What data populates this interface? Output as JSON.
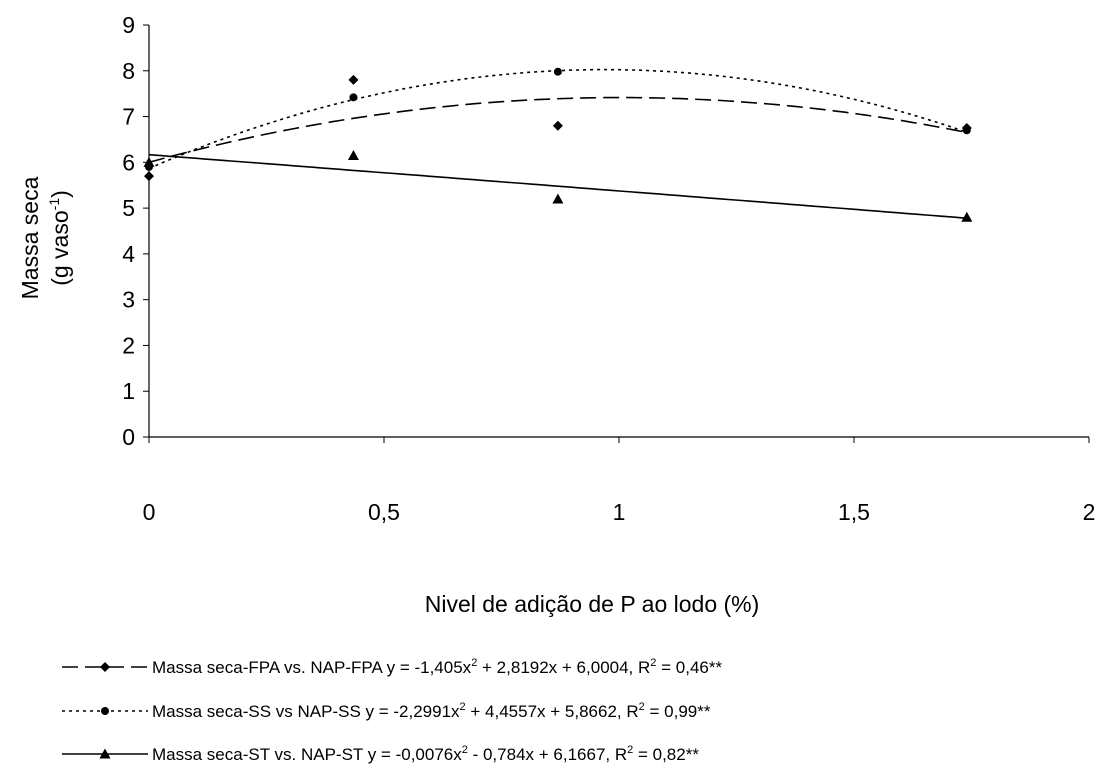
{
  "chart_data": {
    "type": "scatter",
    "title": "",
    "xlabel": "Nivel de adição de P ao lodo (%)",
    "ylabel": "Massa seca",
    "ylabel_units": {
      "prefix": "(g vaso",
      "exponent": "-1",
      "suffix": ")"
    },
    "xlim": [
      0,
      2
    ],
    "ylim": [
      0,
      9
    ],
    "xticks": [
      0,
      0.5,
      1,
      1.5,
      2
    ],
    "xtick_labels": [
      "0",
      "0,5",
      "1",
      "1,5",
      "2"
    ],
    "yticks": [
      0,
      1,
      2,
      3,
      4,
      5,
      6,
      7,
      8,
      9
    ],
    "ytick_labels": [
      "0",
      "1",
      "2",
      "3",
      "4",
      "5",
      "6",
      "7",
      "8",
      "9"
    ],
    "grid": false,
    "legend_position": "bottom",
    "series": [
      {
        "marker": "diamond",
        "line_style": "long-dash",
        "x": [
          0,
          0.435,
          0.87,
          1.74
        ],
        "y": [
          5.7,
          7.8,
          6.8,
          6.75
        ],
        "fit": {
          "a": -1.405,
          "b": 2.8192,
          "c": 6.0004
        },
        "legend": {
          "name": "Massa seca-FPA vs. NAP-FPA",
          "eq_before": "y = -1,405x",
          "eq_sup1": "2",
          "eq_mid": " + 2,8192x + 6,0004,  R",
          "eq_sup2": "2",
          "eq_after": " = 0,46**"
        }
      },
      {
        "marker": "circle",
        "line_style": "dotted",
        "x": [
          0,
          0.435,
          0.87,
          1.74
        ],
        "y": [
          5.9,
          7.42,
          7.98,
          6.7
        ],
        "fit": {
          "a": -2.2991,
          "b": 4.4557,
          "c": 5.8662
        },
        "legend": {
          "name": "Massa seca-SS vs NAP-SS",
          "eq_before": "y = -2,2991x",
          "eq_sup1": "2",
          "eq_mid": " + 4,4557x + 5,8662, R",
          "eq_sup2": "2",
          "eq_after": " = 0,99**"
        }
      },
      {
        "marker": "triangle",
        "line_style": "solid",
        "x": [
          0,
          0.435,
          0.87,
          1.74
        ],
        "y": [
          6.0,
          6.15,
          5.2,
          4.8
        ],
        "fit": {
          "a": -0.0076,
          "b": -0.784,
          "c": 6.1667
        },
        "legend": {
          "name": "Massa seca-ST vs. NAP-ST",
          "eq_before": "y = -0,0076x",
          "eq_sup1": "2",
          "eq_mid": " - 0,784x + 6,1667, R",
          "eq_sup2": "2",
          "eq_after": " = 0,82**"
        }
      }
    ]
  }
}
